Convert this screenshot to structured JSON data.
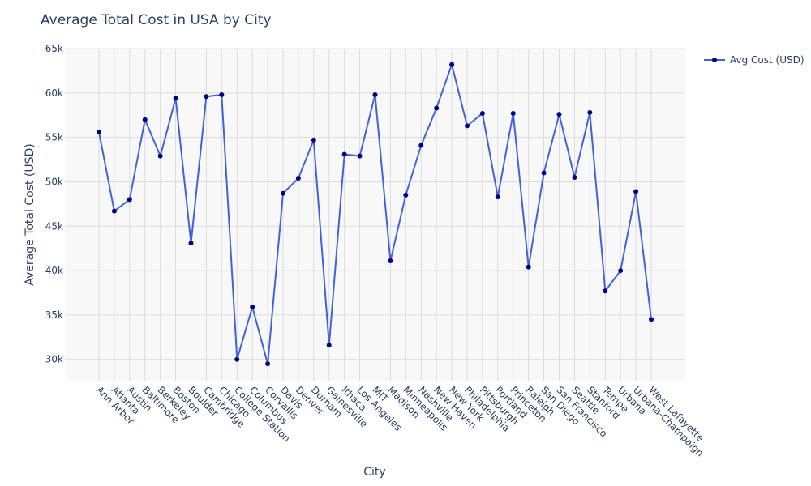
{
  "chart_data": {
    "type": "line",
    "title": "Average Total Cost in USA by City",
    "xlabel": "City",
    "ylabel": "Average Total Cost (USD)",
    "ylim": [
      27600,
      65000
    ],
    "yticks": [
      30000,
      35000,
      40000,
      45000,
      50000,
      55000,
      60000,
      65000
    ],
    "ytick_labels": [
      "30k",
      "35k",
      "40k",
      "45k",
      "50k",
      "55k",
      "60k",
      "65k"
    ],
    "grid": true,
    "legend_position": "top-right",
    "colors": {
      "line": "#4263d6",
      "marker": "#000080",
      "plot_bg": "#f8f8f8",
      "grid": "#dcdcdc"
    },
    "categories": [
      "Ann Arbor",
      "Atlanta",
      "Austin",
      "Baltimore",
      "Berkeley",
      "Boston",
      "Boulder",
      "Cambridge",
      "Chicago",
      "College Station",
      "Columbus",
      "Corvallis",
      "Davis",
      "Denver",
      "Durham",
      "Gainesville",
      "Ithaca",
      "Los Angeles",
      "MIT",
      "Madison",
      "Minneapolis",
      "Nashville",
      "New Haven",
      "New York",
      "Philadelphia",
      "Pittsburgh",
      "Portland",
      "Princeton",
      "Raleigh",
      "San Diego",
      "San Francisco",
      "Seattle",
      "Stanford",
      "Tempe",
      "Urbana",
      "Urbana-Champaign",
      "West Lafayette"
    ],
    "series": [
      {
        "name": "Avg Cost (USD)",
        "values": [
          55600,
          46700,
          48000,
          57000,
          52900,
          59400,
          43100,
          59600,
          59800,
          30000,
          35900,
          29500,
          48700,
          50400,
          54700,
          31600,
          53100,
          52900,
          59800,
          41100,
          48500,
          54100,
          58300,
          63200,
          56300,
          57700,
          48300,
          57700,
          40400,
          51000,
          57600,
          50500,
          57800,
          37700,
          40000,
          48900,
          34500
        ]
      }
    ]
  }
}
